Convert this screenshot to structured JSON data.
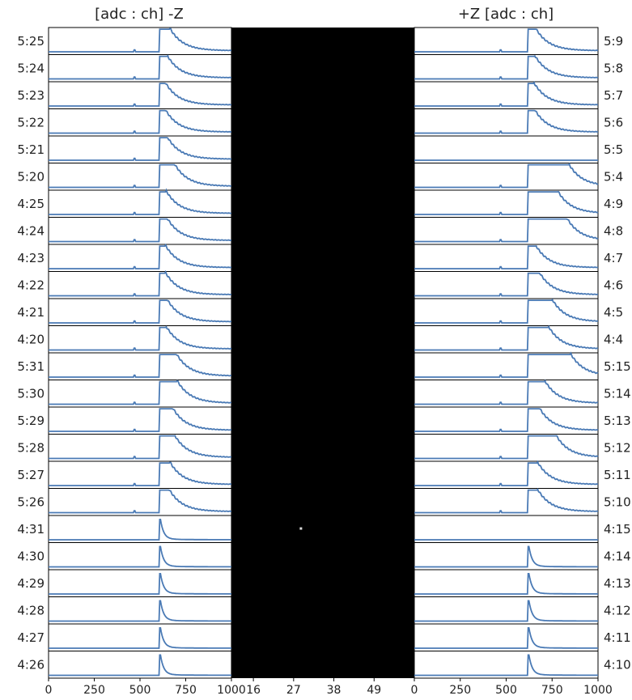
{
  "chart_data": {
    "type": "line",
    "headers": {
      "left": "[adc : ch]  -Z",
      "right": "+Z  [adc : ch]"
    },
    "left_panel": {
      "side": "-Z",
      "row_labels": [
        "5:25",
        "5:24",
        "5:23",
        "5:22",
        "5:21",
        "5:20",
        "4:25",
        "4:24",
        "4:23",
        "4:22",
        "4:21",
        "4:20",
        "5:31",
        "5:30",
        "5:29",
        "5:28",
        "5:27",
        "5:26",
        "4:31",
        "4:30",
        "4:29",
        "4:28",
        "4:27",
        "4:26"
      ],
      "xlim": [
        0,
        1000
      ],
      "x_ticks": [
        "0",
        "250",
        "500",
        "750",
        "1000"
      ]
    },
    "right_panel": {
      "side": "+Z",
      "row_labels": [
        "5:9",
        "5:8",
        "5:7",
        "5:6",
        "5:5",
        "5:4",
        "4:9",
        "4:8",
        "4:7",
        "4:6",
        "4:5",
        "4:4",
        "5:15",
        "5:14",
        "5:13",
        "5:12",
        "5:11",
        "5:10",
        "4:15",
        "4:14",
        "4:13",
        "4:12",
        "4:11",
        "4:10"
      ],
      "xlim": [
        0,
        1000
      ],
      "x_ticks": [
        "0",
        "250",
        "500",
        "750",
        "1000"
      ]
    },
    "center_panel": {
      "type": "heatmap",
      "background": "#000000",
      "x_ticks": [
        "16",
        "27",
        "38",
        "49"
      ],
      "xlim": [
        10,
        60
      ],
      "points": [
        {
          "x": 29,
          "y": 0.17
        }
      ]
    },
    "waveforms": {
      "left": [
        {
          "onset": 608,
          "spike": 470,
          "shape": "broad",
          "flat": 55
        },
        {
          "onset": 608,
          "spike": 470,
          "shape": "broad",
          "flat": 40
        },
        {
          "onset": 608,
          "spike": 470,
          "shape": "broad",
          "flat": 30
        },
        {
          "onset": 608,
          "spike": 470,
          "shape": "broad",
          "flat": 30
        },
        {
          "onset": 608,
          "spike": 470,
          "shape": "broad",
          "flat": 40
        },
        {
          "onset": 608,
          "spike": 470,
          "shape": "broad",
          "flat": 80
        },
        {
          "onset": 608,
          "spike": 470,
          "shape": "broad",
          "flat": 35
        },
        {
          "onset": 608,
          "spike": 470,
          "shape": "broad",
          "flat": 40
        },
        {
          "onset": 608,
          "spike": 470,
          "shape": "broad",
          "flat": 30
        },
        {
          "onset": 608,
          "spike": 470,
          "shape": "broad",
          "flat": 30
        },
        {
          "onset": 608,
          "spike": 470,
          "shape": "broad",
          "flat": 40
        },
        {
          "onset": 608,
          "spike": 470,
          "shape": "broad",
          "flat": 35
        },
        {
          "onset": 608,
          "spike": 470,
          "shape": "broad",
          "flat": 90
        },
        {
          "onset": 608,
          "spike": 470,
          "shape": "broad",
          "flat": 95
        },
        {
          "onset": 608,
          "spike": 470,
          "shape": "broad",
          "flat": 70
        },
        {
          "onset": 608,
          "spike": 470,
          "shape": "broad",
          "flat": 80
        },
        {
          "onset": 608,
          "spike": 470,
          "shape": "broad",
          "flat": 55
        },
        {
          "onset": 608,
          "spike": 470,
          "shape": "broad",
          "flat": 50
        },
        {
          "onset": 608,
          "spike": null,
          "shape": "sharp",
          "flat": 0
        },
        {
          "onset": 608,
          "spike": null,
          "shape": "sharp",
          "flat": 0
        },
        {
          "onset": 608,
          "spike": null,
          "shape": "sharp",
          "flat": 0
        },
        {
          "onset": 608,
          "spike": null,
          "shape": "sharp",
          "flat": 0
        },
        {
          "onset": 608,
          "spike": null,
          "shape": "sharp",
          "flat": 0
        },
        {
          "onset": 608,
          "spike": null,
          "shape": "sharp",
          "flat": 0
        }
      ],
      "right": [
        {
          "onset": 620,
          "spike": 470,
          "shape": "broad",
          "flat": 40
        },
        {
          "onset": 620,
          "spike": 470,
          "shape": "broad",
          "flat": 35
        },
        {
          "onset": 620,
          "spike": 470,
          "shape": "broad",
          "flat": 30
        },
        {
          "onset": 620,
          "spike": 470,
          "shape": "broad",
          "flat": 35
        },
        {
          "onset": 620,
          "spike": null,
          "shape": "none",
          "flat": 0
        },
        {
          "onset": 620,
          "spike": 470,
          "shape": "broad",
          "flat": 220
        },
        {
          "onset": 620,
          "spike": 470,
          "shape": "broad",
          "flat": 160
        },
        {
          "onset": 620,
          "spike": 470,
          "shape": "broad",
          "flat": 210
        },
        {
          "onset": 620,
          "spike": 470,
          "shape": "broad",
          "flat": 40
        },
        {
          "onset": 620,
          "spike": 470,
          "shape": "broad",
          "flat": 60
        },
        {
          "onset": 620,
          "spike": 470,
          "shape": "broad",
          "flat": 130
        },
        {
          "onset": 620,
          "spike": 470,
          "shape": "broad",
          "flat": 110
        },
        {
          "onset": 620,
          "spike": 470,
          "shape": "broad",
          "flat": 230
        },
        {
          "onset": 620,
          "spike": 470,
          "shape": "broad",
          "flat": 90
        },
        {
          "onset": 620,
          "spike": 470,
          "shape": "broad",
          "flat": 60
        },
        {
          "onset": 620,
          "spike": 470,
          "shape": "broad",
          "flat": 150
        },
        {
          "onset": 620,
          "spike": 470,
          "shape": "broad",
          "flat": 50
        },
        {
          "onset": 620,
          "spike": 470,
          "shape": "broad",
          "flat": 50
        },
        {
          "onset": 620,
          "spike": null,
          "shape": "none",
          "flat": 0
        },
        {
          "onset": 620,
          "spike": null,
          "shape": "sharp",
          "flat": 0
        },
        {
          "onset": 620,
          "spike": null,
          "shape": "sharp",
          "flat": 0
        },
        {
          "onset": 620,
          "spike": null,
          "shape": "sharp",
          "flat": 0
        },
        {
          "onset": 620,
          "spike": null,
          "shape": "sharp",
          "flat": 0
        },
        {
          "onset": 620,
          "spike": null,
          "shape": "sharp",
          "flat": 0
        }
      ]
    },
    "colors": {
      "trace": "#4a7ab5",
      "frame": "#000000",
      "center_bg": "#000000",
      "point": "#dddddd"
    }
  }
}
